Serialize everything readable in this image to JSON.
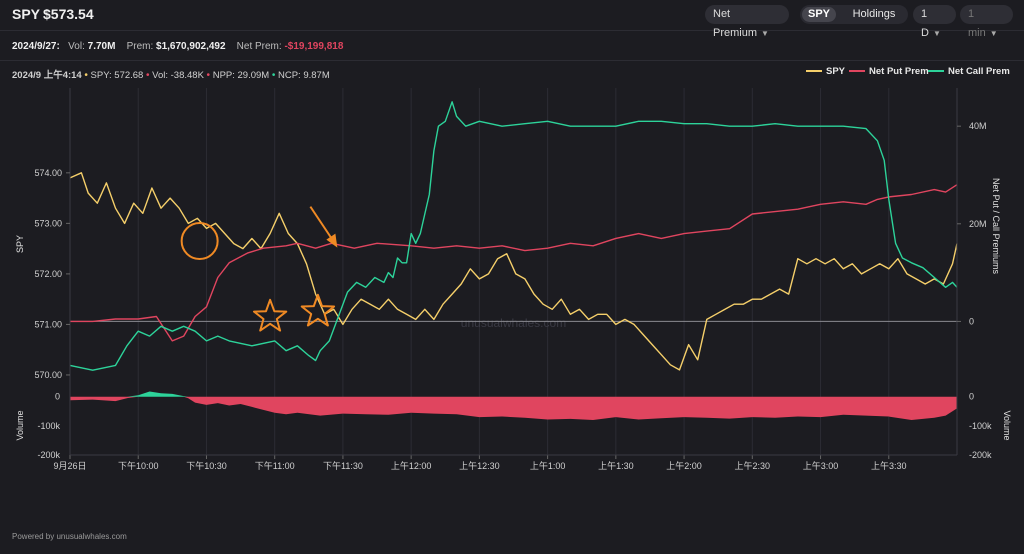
{
  "header": {
    "ticker": "SPY",
    "price": "$573.54",
    "premium_select": "Net Premium",
    "tab_spy": "SPY",
    "tab_holdings": "Holdings",
    "range_select": "1 D",
    "interval_select": "1 min"
  },
  "summary": {
    "date": "2024/9/27:",
    "vol_label": "Vol:",
    "vol_value": "7.70M",
    "prem_label": "Prem:",
    "prem_value": "$1,670,902,492",
    "netprem_label": "Net Prem:",
    "netprem_value": "-$19,199,818"
  },
  "hover": {
    "time": "2024/9 上午4:14",
    "spy": "SPY: 572.68",
    "vol": "Vol: -38.48K",
    "npp": "NPP: 29.09M",
    "ncp": "NCP: 9.87M"
  },
  "footer": "Powered by unusualwhales.com",
  "watermark": "unusualwhales.com",
  "colors": {
    "spy": "#f5cf6a",
    "put": "#e0455f",
    "call": "#2dd39a",
    "annotation": "#f08a24"
  },
  "chart_data": {
    "type": "line",
    "x_ticks": [
      "9月26日",
      "下午10:00",
      "下午10:30",
      "下午11:00",
      "下午11:30",
      "上午12:00",
      "上午12:30",
      "上午1:00",
      "上午1:30",
      "上午2:00",
      "上午2:30",
      "上午3:00",
      "上午3:30"
    ],
    "legend": [
      "SPY",
      "Net Put Prem",
      "Net Call Prem"
    ],
    "legend_position": "top-right",
    "left_axis": {
      "label": "SPY",
      "ylim": [
        569.9,
        575.6
      ],
      "ticks": [
        "570.00",
        "571.00",
        "572.00",
        "573.00",
        "574.00"
      ]
    },
    "right_axis": {
      "label": "Net Put / Call Premiums",
      "ylim": [
        -12,
        47
      ],
      "ticks": [
        "0",
        "20M",
        "40M"
      ]
    },
    "volume_axis": {
      "label": "Volume",
      "ylim": [
        -200,
        30
      ],
      "ticks": [
        "0",
        "-100k",
        "-200k"
      ]
    },
    "time_range_min": [
      0,
      390
    ],
    "series": [
      {
        "name": "SPY",
        "axis": "left",
        "points": [
          [
            0,
            573.9
          ],
          [
            5,
            574.0
          ],
          [
            8,
            573.6
          ],
          [
            12,
            573.4
          ],
          [
            16,
            573.8
          ],
          [
            20,
            573.3
          ],
          [
            24,
            573.0
          ],
          [
            28,
            573.4
          ],
          [
            32,
            573.2
          ],
          [
            36,
            573.7
          ],
          [
            40,
            573.3
          ],
          [
            44,
            573.5
          ],
          [
            48,
            573.3
          ],
          [
            52,
            573.0
          ],
          [
            56,
            573.1
          ],
          [
            60,
            572.9
          ],
          [
            64,
            573.0
          ],
          [
            68,
            572.8
          ],
          [
            72,
            572.6
          ],
          [
            76,
            572.5
          ],
          [
            80,
            572.7
          ],
          [
            84,
            572.5
          ],
          [
            88,
            572.8
          ],
          [
            92,
            573.2
          ],
          [
            96,
            572.8
          ],
          [
            100,
            572.6
          ],
          [
            104,
            572.2
          ],
          [
            108,
            571.6
          ],
          [
            112,
            571.2
          ],
          [
            116,
            571.3
          ],
          [
            120,
            571.0
          ],
          [
            124,
            571.3
          ],
          [
            128,
            571.5
          ],
          [
            132,
            571.4
          ],
          [
            136,
            571.3
          ],
          [
            140,
            571.5
          ],
          [
            144,
            571.3
          ],
          [
            148,
            571.2
          ],
          [
            152,
            571.1
          ],
          [
            156,
            571.3
          ],
          [
            160,
            571.1
          ],
          [
            164,
            571.4
          ],
          [
            168,
            571.6
          ],
          [
            172,
            571.8
          ],
          [
            176,
            572.1
          ],
          [
            180,
            571.9
          ],
          [
            184,
            572.0
          ],
          [
            188,
            572.3
          ],
          [
            192,
            572.4
          ],
          [
            196,
            572.0
          ],
          [
            200,
            571.9
          ],
          [
            204,
            571.6
          ],
          [
            208,
            571.4
          ],
          [
            212,
            571.3
          ],
          [
            216,
            571.5
          ],
          [
            220,
            571.2
          ],
          [
            224,
            571.3
          ],
          [
            228,
            571.1
          ],
          [
            232,
            571.2
          ],
          [
            236,
            571.2
          ],
          [
            240,
            571.0
          ],
          [
            244,
            571.1
          ],
          [
            248,
            571.0
          ],
          [
            252,
            570.8
          ],
          [
            256,
            570.6
          ],
          [
            260,
            570.4
          ],
          [
            264,
            570.2
          ],
          [
            268,
            570.1
          ],
          [
            272,
            570.6
          ],
          [
            276,
            570.3
          ],
          [
            280,
            571.1
          ],
          [
            284,
            571.2
          ],
          [
            288,
            571.3
          ],
          [
            292,
            571.4
          ],
          [
            296,
            571.4
          ],
          [
            300,
            571.5
          ],
          [
            304,
            571.5
          ],
          [
            308,
            571.6
          ],
          [
            312,
            571.7
          ],
          [
            316,
            571.6
          ],
          [
            320,
            572.3
          ],
          [
            324,
            572.2
          ],
          [
            328,
            572.3
          ],
          [
            332,
            572.2
          ],
          [
            336,
            572.3
          ],
          [
            340,
            572.1
          ],
          [
            344,
            572.2
          ],
          [
            348,
            572.0
          ],
          [
            352,
            572.1
          ],
          [
            356,
            572.2
          ],
          [
            360,
            572.1
          ],
          [
            364,
            572.3
          ],
          [
            368,
            572.0
          ],
          [
            372,
            571.9
          ],
          [
            376,
            571.8
          ],
          [
            380,
            571.9
          ],
          [
            384,
            571.8
          ],
          [
            388,
            572.2
          ],
          [
            390,
            572.6
          ]
        ]
      },
      {
        "name": "Net Put Prem",
        "axis": "right",
        "points": [
          [
            0,
            0
          ],
          [
            10,
            0
          ],
          [
            20,
            0.5
          ],
          [
            30,
            0.5
          ],
          [
            38,
            1
          ],
          [
            45,
            -4
          ],
          [
            50,
            -3
          ],
          [
            55,
            1
          ],
          [
            60,
            3
          ],
          [
            65,
            9
          ],
          [
            70,
            12
          ],
          [
            78,
            14
          ],
          [
            85,
            15
          ],
          [
            95,
            15.5
          ],
          [
            100,
            16
          ],
          [
            108,
            15
          ],
          [
            115,
            16
          ],
          [
            125,
            15
          ],
          [
            135,
            16
          ],
          [
            150,
            15.5
          ],
          [
            160,
            15
          ],
          [
            170,
            15.5
          ],
          [
            180,
            15
          ],
          [
            190,
            15.5
          ],
          [
            200,
            14.5
          ],
          [
            210,
            15
          ],
          [
            220,
            16
          ],
          [
            230,
            15.5
          ],
          [
            240,
            17
          ],
          [
            250,
            18
          ],
          [
            260,
            17
          ],
          [
            270,
            18
          ],
          [
            280,
            18.5
          ],
          [
            290,
            19
          ],
          [
            300,
            22
          ],
          [
            310,
            22.5
          ],
          [
            320,
            23
          ],
          [
            330,
            24
          ],
          [
            340,
            24.5
          ],
          [
            350,
            24
          ],
          [
            355,
            25
          ],
          [
            360,
            25.5
          ],
          [
            370,
            26
          ],
          [
            380,
            27
          ],
          [
            385,
            26.5
          ],
          [
            390,
            28
          ]
        ]
      },
      {
        "name": "Net Call Prem",
        "axis": "right",
        "points": [
          [
            0,
            -9
          ],
          [
            10,
            -10
          ],
          [
            20,
            -9
          ],
          [
            25,
            -5
          ],
          [
            30,
            -2
          ],
          [
            35,
            -3
          ],
          [
            40,
            -1
          ],
          [
            45,
            -2
          ],
          [
            50,
            -1
          ],
          [
            55,
            -2
          ],
          [
            60,
            -4
          ],
          [
            65,
            -3
          ],
          [
            70,
            -4
          ],
          [
            80,
            -5
          ],
          [
            90,
            -4
          ],
          [
            95,
            -6
          ],
          [
            100,
            -5
          ],
          [
            105,
            -7
          ],
          [
            108,
            -8
          ],
          [
            110,
            -6
          ],
          [
            114,
            -4
          ],
          [
            118,
            1
          ],
          [
            122,
            6
          ],
          [
            126,
            8
          ],
          [
            130,
            7
          ],
          [
            134,
            9
          ],
          [
            138,
            8
          ],
          [
            140,
            10
          ],
          [
            142,
            9
          ],
          [
            144,
            13
          ],
          [
            146,
            12
          ],
          [
            148,
            12
          ],
          [
            150,
            18
          ],
          [
            152,
            16
          ],
          [
            154,
            18
          ],
          [
            156,
            22
          ],
          [
            158,
            26
          ],
          [
            160,
            35
          ],
          [
            162,
            40
          ],
          [
            165,
            41
          ],
          [
            168,
            45
          ],
          [
            170,
            42
          ],
          [
            174,
            40
          ],
          [
            180,
            41
          ],
          [
            190,
            40
          ],
          [
            200,
            40.5
          ],
          [
            210,
            41
          ],
          [
            220,
            40
          ],
          [
            230,
            40
          ],
          [
            240,
            40
          ],
          [
            250,
            41
          ],
          [
            260,
            41
          ],
          [
            270,
            40.5
          ],
          [
            280,
            40.5
          ],
          [
            290,
            40
          ],
          [
            300,
            40
          ],
          [
            310,
            40.5
          ],
          [
            320,
            40
          ],
          [
            330,
            40
          ],
          [
            340,
            40
          ],
          [
            350,
            39.5
          ],
          [
            355,
            37
          ],
          [
            358,
            33
          ],
          [
            360,
            25
          ],
          [
            363,
            16
          ],
          [
            366,
            13
          ],
          [
            370,
            12
          ],
          [
            375,
            11
          ],
          [
            380,
            9
          ],
          [
            385,
            7
          ],
          [
            388,
            8
          ],
          [
            390,
            7
          ]
        ]
      },
      {
        "name": "Volume",
        "axis": "volume",
        "points": [
          [
            0,
            -12
          ],
          [
            10,
            -10
          ],
          [
            20,
            -15
          ],
          [
            25,
            -5
          ],
          [
            30,
            5
          ],
          [
            35,
            18
          ],
          [
            40,
            12
          ],
          [
            45,
            10
          ],
          [
            50,
            2
          ],
          [
            52,
            -5
          ],
          [
            55,
            -20
          ],
          [
            60,
            -28
          ],
          [
            65,
            -22
          ],
          [
            70,
            -30
          ],
          [
            75,
            -25
          ],
          [
            80,
            -35
          ],
          [
            85,
            -45
          ],
          [
            90,
            -55
          ],
          [
            95,
            -60
          ],
          [
            100,
            -55
          ],
          [
            110,
            -65
          ],
          [
            120,
            -58
          ],
          [
            130,
            -60
          ],
          [
            140,
            -62
          ],
          [
            150,
            -55
          ],
          [
            160,
            -58
          ],
          [
            170,
            -60
          ],
          [
            180,
            -70
          ],
          [
            190,
            -68
          ],
          [
            200,
            -72
          ],
          [
            210,
            -78
          ],
          [
            220,
            -76
          ],
          [
            230,
            -80
          ],
          [
            240,
            -70
          ],
          [
            250,
            -78
          ],
          [
            260,
            -74
          ],
          [
            270,
            -70
          ],
          [
            280,
            -72
          ],
          [
            290,
            -75
          ],
          [
            300,
            -70
          ],
          [
            310,
            -72
          ],
          [
            320,
            -68
          ],
          [
            330,
            -70
          ],
          [
            340,
            -62
          ],
          [
            350,
            -65
          ],
          [
            360,
            -68
          ],
          [
            370,
            -80
          ],
          [
            380,
            -72
          ],
          [
            385,
            -65
          ],
          [
            390,
            -40
          ]
        ]
      }
    ],
    "reference_line": {
      "axis": "right",
      "value": 0
    },
    "annotations": [
      {
        "type": "circle",
        "t": 57,
        "spy": 572.65
      },
      {
        "type": "arrow",
        "t": 118,
        "spy": 572.5
      },
      {
        "type": "star",
        "t": 88,
        "spy": 571.15
      },
      {
        "type": "star",
        "t": 109,
        "spy": 571.25
      }
    ]
  }
}
